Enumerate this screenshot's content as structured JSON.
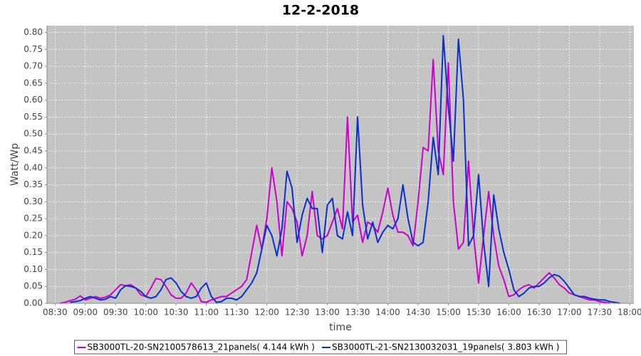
{
  "chart_data": {
    "type": "line",
    "title": "12-2-2018",
    "x_label": "time",
    "y_label": "Watt/Wp",
    "x": [
      "08:35",
      "08:40",
      "08:45",
      "08:50",
      "08:55",
      "09:00",
      "09:05",
      "09:10",
      "09:15",
      "09:20",
      "09:25",
      "09:30",
      "09:35",
      "09:40",
      "09:45",
      "09:50",
      "09:55",
      "10:00",
      "10:05",
      "10:10",
      "10:15",
      "10:20",
      "10:25",
      "10:30",
      "10:35",
      "10:40",
      "10:45",
      "10:50",
      "10:55",
      "11:00",
      "11:05",
      "11:10",
      "11:15",
      "11:20",
      "11:25",
      "11:30",
      "11:35",
      "11:40",
      "11:45",
      "11:50",
      "11:55",
      "12:00",
      "12:05",
      "12:10",
      "12:15",
      "12:20",
      "12:25",
      "12:30",
      "12:35",
      "12:40",
      "12:45",
      "12:50",
      "12:55",
      "13:00",
      "13:05",
      "13:10",
      "13:15",
      "13:20",
      "13:25",
      "13:30",
      "13:35",
      "13:40",
      "13:45",
      "13:50",
      "13:55",
      "14:00",
      "14:05",
      "14:10",
      "14:15",
      "14:20",
      "14:25",
      "14:30",
      "14:35",
      "14:40",
      "14:45",
      "14:50",
      "14:55",
      "15:00",
      "15:05",
      "15:10",
      "15:15",
      "15:20",
      "15:25",
      "15:30",
      "15:35",
      "15:40",
      "15:45",
      "15:50",
      "15:55",
      "16:00",
      "16:05",
      "16:10",
      "16:15",
      "16:20",
      "16:25",
      "16:30",
      "16:35",
      "16:40",
      "16:45",
      "16:50",
      "16:55",
      "17:00",
      "17:05",
      "17:10",
      "17:15",
      "17:20",
      "17:25",
      "17:30",
      "17:35",
      "17:40",
      "17:45",
      "17:50"
    ],
    "series": [
      {
        "name": "SB3000TL-20-SN2100578613_21panels( 4.144 kWh )",
        "color": "#cc00cc",
        "values": [
          0,
          0.003,
          0.008,
          0.012,
          0.022,
          0.01,
          0.015,
          0.02,
          0.015,
          0.018,
          0.025,
          0.04,
          0.055,
          0.052,
          0.055,
          0.045,
          0.025,
          0.02,
          0.045,
          0.073,
          0.07,
          0.05,
          0.025,
          0.015,
          0.015,
          0.03,
          0.06,
          0.04,
          0.005,
          0.003,
          0.01,
          0.015,
          0.02,
          0.02,
          0.03,
          0.04,
          0.05,
          0.07,
          0.15,
          0.23,
          0.16,
          0.25,
          0.4,
          0.3,
          0.14,
          0.3,
          0.28,
          0.24,
          0.14,
          0.2,
          0.33,
          0.2,
          0.19,
          0.2,
          0.24,
          0.28,
          0.22,
          0.55,
          0.24,
          0.26,
          0.18,
          0.24,
          0.23,
          0.21,
          0.27,
          0.34,
          0.26,
          0.21,
          0.21,
          0.2,
          0.17,
          0.3,
          0.46,
          0.45,
          0.72,
          0.45,
          0.38,
          0.71,
          0.3,
          0.16,
          0.18,
          0.42,
          0.2,
          0.06,
          0.2,
          0.33,
          0.2,
          0.11,
          0.07,
          0.02,
          0.025,
          0.04,
          0.05,
          0.055,
          0.045,
          0.06,
          0.075,
          0.09,
          0.075,
          0.055,
          0.045,
          0.03,
          0.025,
          0.02,
          0.015,
          0.01,
          0.01,
          0.005,
          0.003,
          0,
          null,
          null
        ]
      },
      {
        "name": "SB3000TL-21-SN2130032031_19panels( 3.803 kWh )",
        "color": "#0a2fcc",
        "values": [
          null,
          null,
          0.003,
          0.005,
          0.008,
          0.015,
          0.02,
          0.015,
          0.01,
          0.012,
          0.02,
          0.015,
          0.04,
          0.052,
          0.05,
          0.045,
          0.035,
          0.02,
          0.015,
          0.02,
          0.04,
          0.07,
          0.075,
          0.06,
          0.035,
          0.02,
          0.015,
          0.02,
          0.045,
          0.06,
          0.02,
          0.003,
          0.005,
          0.015,
          0.015,
          0.01,
          0.02,
          0.04,
          0.06,
          0.09,
          0.16,
          0.23,
          0.2,
          0.14,
          0.22,
          0.39,
          0.34,
          0.18,
          0.26,
          0.31,
          0.28,
          0.28,
          0.15,
          0.29,
          0.31,
          0.2,
          0.19,
          0.27,
          0.2,
          0.55,
          0.29,
          0.19,
          0.24,
          0.18,
          0.21,
          0.23,
          0.22,
          0.25,
          0.35,
          0.25,
          0.18,
          0.17,
          0.18,
          0.3,
          0.49,
          0.38,
          0.79,
          0.58,
          0.42,
          0.78,
          0.6,
          0.17,
          0.2,
          0.38,
          0.18,
          0.05,
          0.32,
          0.22,
          0.15,
          0.1,
          0.04,
          0.02,
          0.03,
          0.045,
          0.05,
          0.05,
          0.06,
          0.075,
          0.085,
          0.08,
          0.065,
          0.045,
          0.025,
          0.02,
          0.02,
          0.015,
          0.012,
          0.01,
          0.01,
          0.005,
          0.003,
          0
        ]
      }
    ],
    "xlim": [
      "08:22",
      "18:04"
    ],
    "xticks": [
      "08:30",
      "09:00",
      "09:30",
      "10:00",
      "10:30",
      "11:00",
      "11:30",
      "12:00",
      "12:30",
      "13:00",
      "13:30",
      "14:00",
      "14:30",
      "15:00",
      "15:30",
      "16:00",
      "16:30",
      "17:00",
      "17:30",
      "18:00"
    ],
    "ylim": [
      0,
      0.82
    ],
    "yticks": [
      {
        "value": 0,
        "label": "0.00"
      },
      {
        "value": 0.05,
        "label": "0.05"
      },
      {
        "value": 0.1,
        "label": "0.10"
      },
      {
        "value": 0.15,
        "label": "0.15"
      },
      {
        "value": 0.2,
        "label": "0.20"
      },
      {
        "value": 0.25,
        "label": "0.25"
      },
      {
        "value": 0.3,
        "label": "0.30"
      },
      {
        "value": 0.35,
        "label": "0.35"
      },
      {
        "value": 0.4,
        "label": "0.40"
      },
      {
        "value": 0.45,
        "label": "0.45"
      },
      {
        "value": 0.5,
        "label": "0.50"
      },
      {
        "value": 0.55,
        "label": "0.55"
      },
      {
        "value": 0.6,
        "label": "0.60"
      },
      {
        "value": 0.65,
        "label": "0.65"
      },
      {
        "value": 0.7,
        "label": "0.70"
      },
      {
        "value": 0.75,
        "label": "0.75"
      },
      {
        "value": 0.8,
        "label": "0.80"
      }
    ],
    "grid": true,
    "legend": "bottom"
  }
}
